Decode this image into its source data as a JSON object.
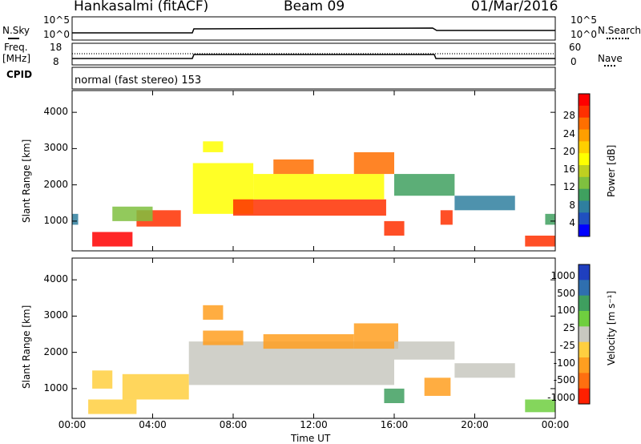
{
  "header": {
    "station": "Hankasalmi (fitACF)",
    "beam": "Beam 09",
    "date": "01/Mar/2016"
  },
  "status_panels": {
    "nsky_label": "N.Sky",
    "nsky_top": "10^5",
    "nsky_bottom": "10^0",
    "nsearch_label": "N.Search",
    "nsearch_top": "10^5",
    "nsearch_bottom": "10^0",
    "freq_label": "Freq.",
    "freq_unit": "[MHz]",
    "freq_top": "18",
    "freq_bottom": "8",
    "nave_label": "Nave",
    "nave_top": "60",
    "nave_bottom": "0",
    "cpid_label": "CPID",
    "cpid_text": "normal (fast stereo) 153"
  },
  "chart_data": [
    {
      "type": "heatmap",
      "name": "power",
      "ylabel": "Slant Range [km]",
      "xlabel": "Time UT",
      "x_ticks": [
        "00:00",
        "04:00",
        "08:00",
        "12:00",
        "16:00",
        "20:00",
        "00:00"
      ],
      "y_ticks": [
        "1000",
        "2000",
        "3000",
        "4000"
      ],
      "xlim": [
        0,
        24
      ],
      "ylim": [
        180,
        4600
      ],
      "colorbar_label": "Power [dB]",
      "colorbar_ticks": [
        "4",
        "8",
        "12",
        "16",
        "20",
        "24",
        "28"
      ],
      "colorbar_colors": [
        "#0000ff",
        "#2050c0",
        "#2f7f9f",
        "#3fa05f",
        "#7fc03f",
        "#bfd020",
        "#ffff00",
        "#ffcf00",
        "#ff9f00",
        "#ff6f00",
        "#ff3000",
        "#ff0000"
      ],
      "regions": [
        {
          "t0": 1.0,
          "t1": 3.0,
          "r0": 300,
          "r1": 700,
          "level": 0.95
        },
        {
          "t0": 3.2,
          "t1": 5.4,
          "r0": 850,
          "r1": 1300,
          "level": 0.85
        },
        {
          "t0": 2.0,
          "t1": 4.0,
          "r0": 1000,
          "r1": 1400,
          "level": 0.4
        },
        {
          "t0": 6.0,
          "t1": 9.0,
          "r0": 1200,
          "r1": 2600,
          "level": 0.5
        },
        {
          "t0": 8.0,
          "t1": 15.6,
          "r0": 1150,
          "r1": 1600,
          "level": 0.9
        },
        {
          "t0": 9.0,
          "t1": 15.5,
          "r0": 1600,
          "r1": 2300,
          "level": 0.55
        },
        {
          "t0": 10.0,
          "t1": 12.0,
          "r0": 2300,
          "r1": 2700,
          "level": 0.75
        },
        {
          "t0": 14.0,
          "t1": 16.0,
          "r0": 2300,
          "r1": 2900,
          "level": 0.8
        },
        {
          "t0": 15.5,
          "t1": 16.5,
          "r0": 600,
          "r1": 1000,
          "level": 0.85
        },
        {
          "t0": 16.0,
          "t1": 19.0,
          "r0": 1700,
          "r1": 2300,
          "level": 0.3
        },
        {
          "t0": 19.0,
          "t1": 22.0,
          "r0": 1300,
          "r1": 1700,
          "level": 0.2
        },
        {
          "t0": 22.5,
          "t1": 24.0,
          "r0": 300,
          "r1": 600,
          "level": 0.9
        },
        {
          "t0": 6.5,
          "t1": 7.5,
          "r0": 2900,
          "r1": 3200,
          "level": 0.5
        },
        {
          "t0": 0.0,
          "t1": 0.3,
          "r0": 900,
          "r1": 1200,
          "level": 0.2
        },
        {
          "t0": 23.5,
          "t1": 24.0,
          "r0": 900,
          "r1": 1200,
          "level": 0.3
        },
        {
          "t0": 18.3,
          "t1": 18.9,
          "r0": 900,
          "r1": 1300,
          "level": 0.9
        }
      ]
    },
    {
      "type": "heatmap",
      "name": "velocity",
      "ylabel": "Slant Range [km]",
      "xlabel": "Time UT",
      "x_ticks": [
        "00:00",
        "04:00",
        "08:00",
        "12:00",
        "16:00",
        "20:00",
        "00:00"
      ],
      "y_ticks": [
        "1000",
        "2000",
        "3000",
        "4000"
      ],
      "xlim": [
        0,
        24
      ],
      "ylim": [
        180,
        4600
      ],
      "colorbar_label": "Velocity [m s⁻¹]",
      "colorbar_ticks": [
        "1000",
        "500",
        "100",
        "25",
        "-25",
        "-100",
        "-500",
        "-1000"
      ],
      "colorbar_colors": [
        "#1f3fbf",
        "#2f6faf",
        "#3f9f5f",
        "#6fcf3f",
        "#c8c8c0",
        "#ffcf40",
        "#ff9f20",
        "#ff6f10",
        "#ff2000"
      ],
      "regions": [
        {
          "t0": 5.8,
          "t1": 16.0,
          "r0": 1100,
          "r1": 2300,
          "color": "#c8c8c0"
        },
        {
          "t0": 9.5,
          "t1": 14.0,
          "r0": 2100,
          "r1": 2500,
          "color": "#ff9f20"
        },
        {
          "t0": 14.0,
          "t1": 16.2,
          "r0": 2100,
          "r1": 2800,
          "color": "#ff9f20"
        },
        {
          "t0": 0.8,
          "t1": 3.2,
          "r0": 300,
          "r1": 700,
          "color": "#ffcf40"
        },
        {
          "t0": 2.5,
          "t1": 5.8,
          "r0": 700,
          "r1": 1400,
          "color": "#ffcf40"
        },
        {
          "t0": 6.5,
          "t1": 8.5,
          "r0": 2200,
          "r1": 2600,
          "color": "#ff9f20"
        },
        {
          "t0": 6.5,
          "t1": 7.5,
          "r0": 2900,
          "r1": 3300,
          "color": "#ff9f20"
        },
        {
          "t0": 16.0,
          "t1": 19.0,
          "r0": 1800,
          "r1": 2300,
          "color": "#c8c8c0"
        },
        {
          "t0": 19.0,
          "t1": 22.0,
          "r0": 1300,
          "r1": 1700,
          "color": "#c8c8c0"
        },
        {
          "t0": 17.5,
          "t1": 18.8,
          "r0": 800,
          "r1": 1300,
          "color": "#ff9f20"
        },
        {
          "t0": 22.5,
          "t1": 24.0,
          "r0": 350,
          "r1": 700,
          "color": "#6fcf3f"
        },
        {
          "t0": 15.5,
          "t1": 16.5,
          "r0": 600,
          "r1": 1000,
          "color": "#3f9f5f"
        },
        {
          "t0": 1.0,
          "t1": 2.0,
          "r0": 1000,
          "r1": 1500,
          "color": "#ffcf40"
        }
      ]
    }
  ]
}
